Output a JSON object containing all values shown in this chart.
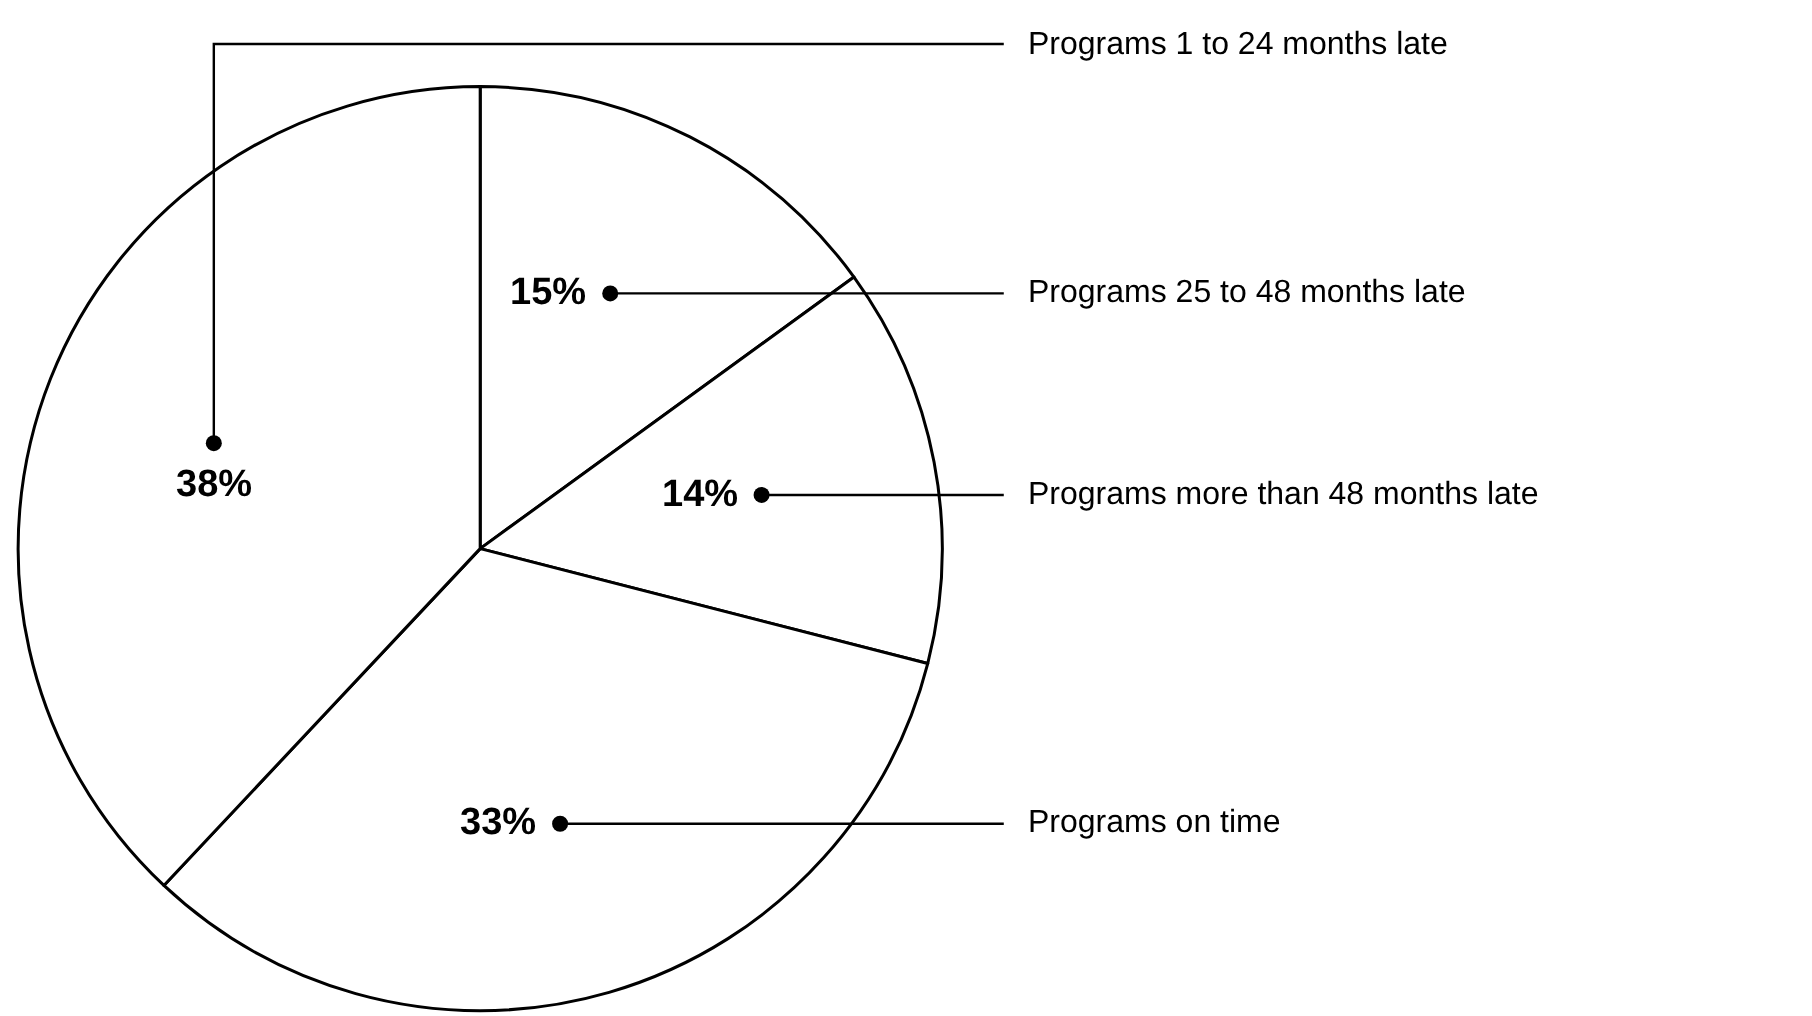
{
  "chart_data": {
    "type": "pie",
    "categories": [
      "Programs 25 to 48 months late",
      "Programs more than 48 months late",
      "Programs on time",
      "Programs 1 to 24 months late"
    ],
    "values": [
      15,
      14,
      33,
      38
    ],
    "value_labels": [
      "15%",
      "14%",
      "33%",
      "38%"
    ],
    "colors": [
      "#ffffff",
      "#ffffff",
      "#ffffff",
      "#ffffff"
    ],
    "legend": false
  }
}
